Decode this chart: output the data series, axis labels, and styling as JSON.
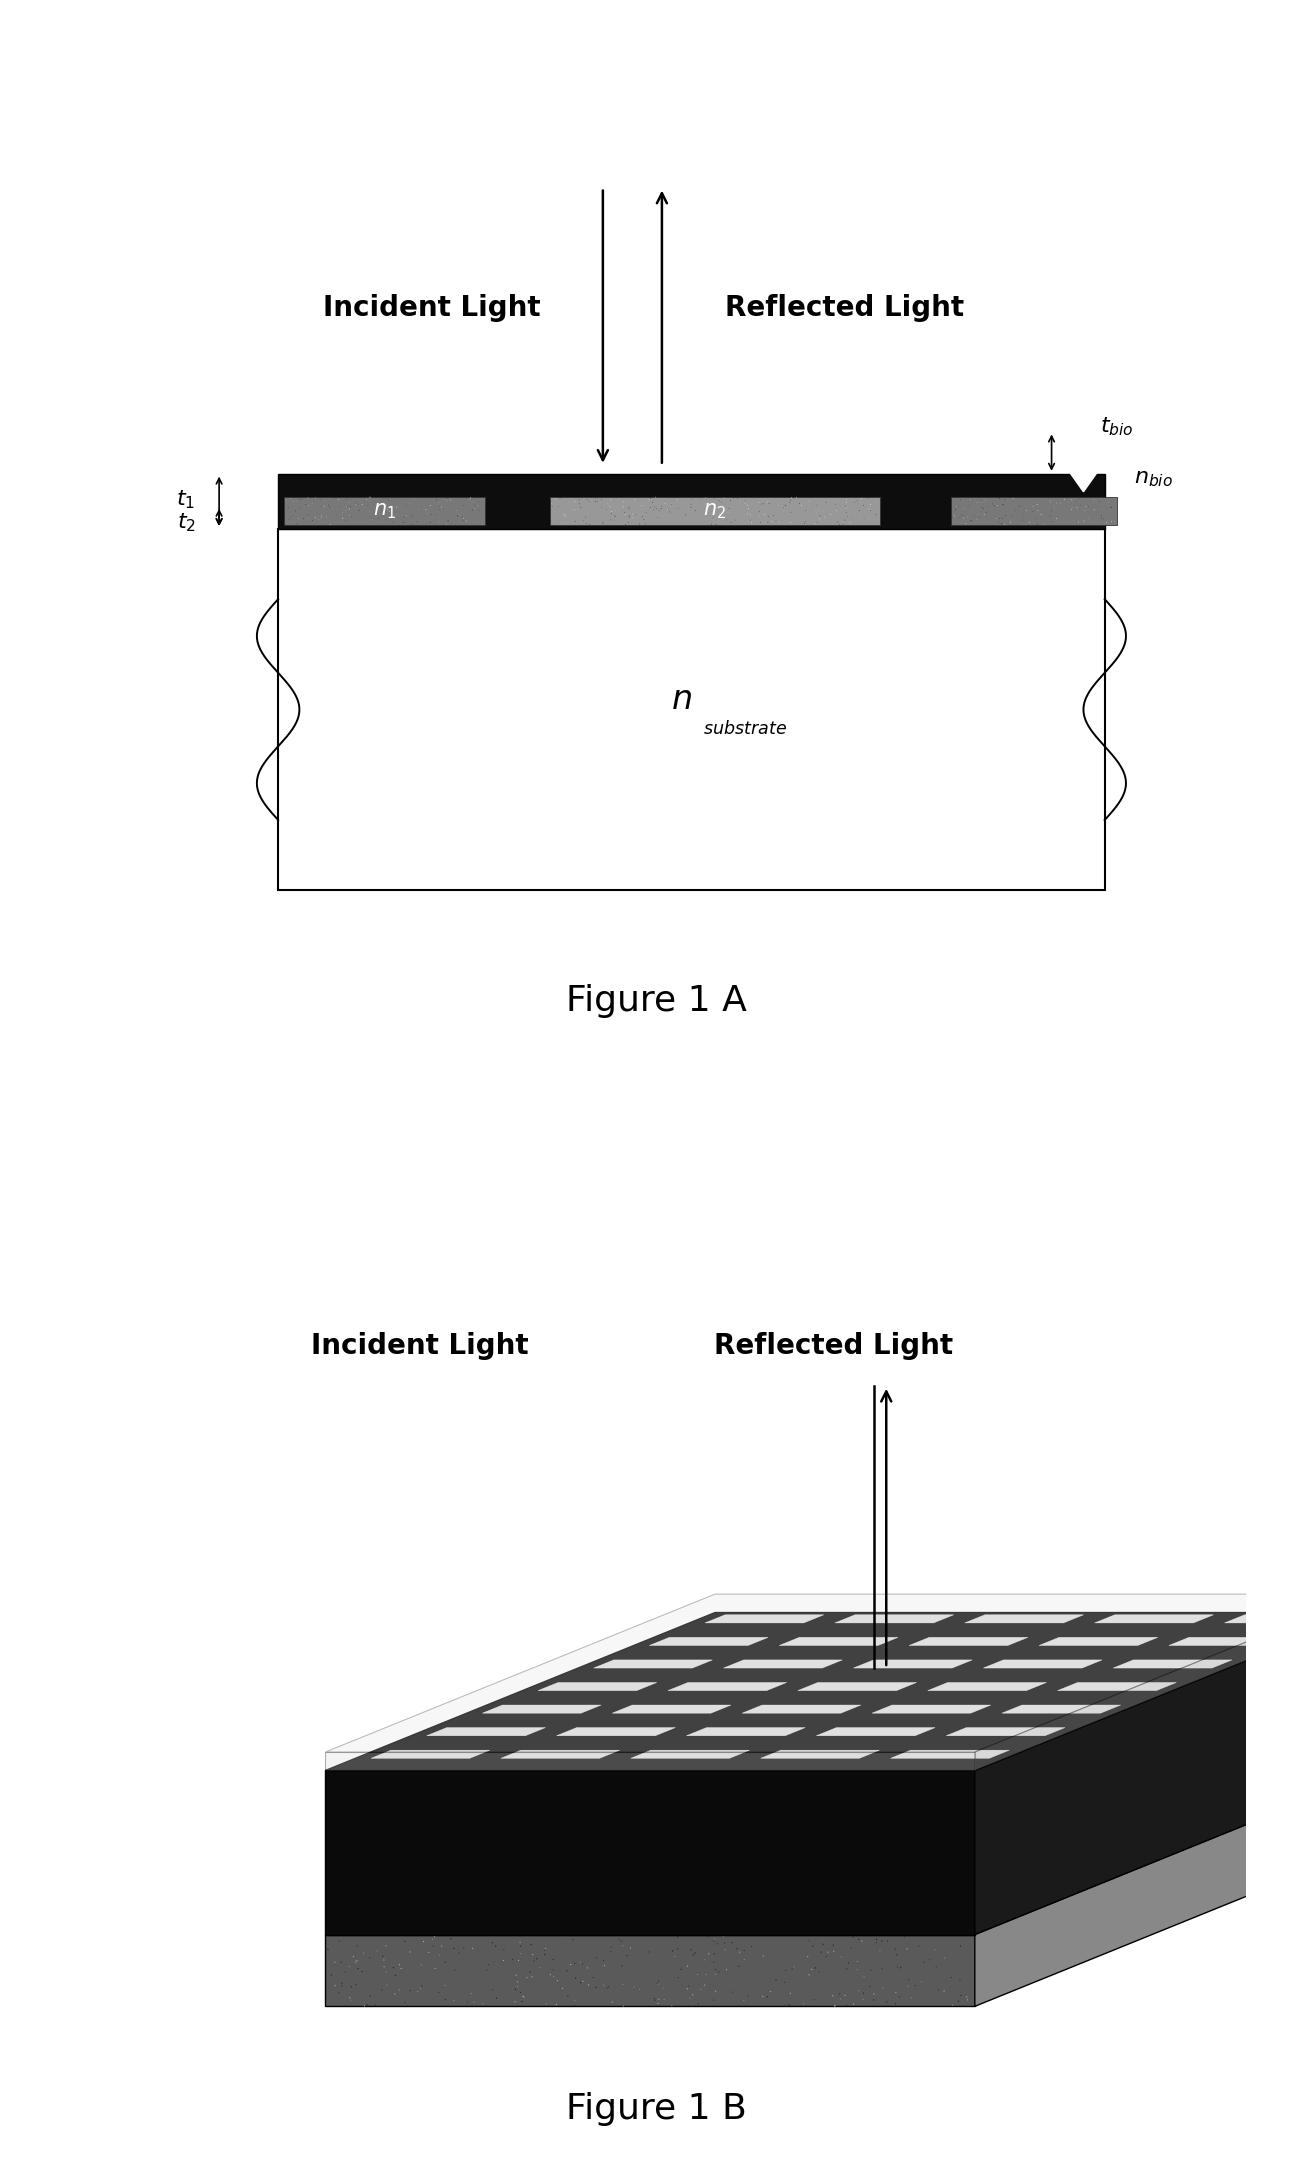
{
  "fig_width": 13.12,
  "fig_height": 21.82,
  "bg_color": "#ffffff",
  "figA": {
    "caption": "Figure 1 A",
    "caption_fontsize": 26,
    "incident_light_label": "Incident Light",
    "reflected_light_label": "Reflected Light",
    "label_fontsize": 20,
    "arrow_color": "#000000"
  },
  "figB": {
    "caption": "Figure 1 B",
    "caption_fontsize": 26,
    "incident_light_label": "Incident Light",
    "reflected_light_label": "Reflected Light",
    "label_fontsize": 20
  }
}
